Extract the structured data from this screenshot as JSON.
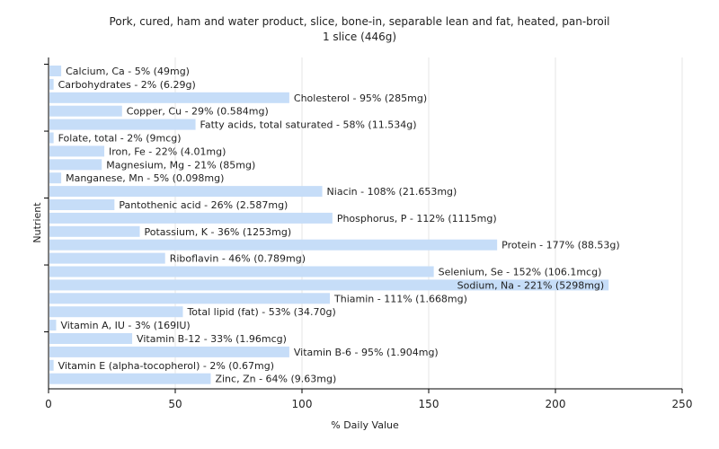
{
  "chart_data": {
    "type": "bar",
    "orientation": "horizontal",
    "title": "Pork, cured, ham and water product, slice, bone-in, separable lean and fat, heated, pan-broil",
    "subtitle": "1 slice (446g)",
    "xlabel": "% Daily Value",
    "ylabel": "Nutrient",
    "xlim": [
      0,
      250
    ],
    "xticks": [
      "0",
      "50",
      "100",
      "150",
      "200",
      "250"
    ],
    "grid": true,
    "categories": [
      "Calcium, Ca",
      "Carbohydrates",
      "Cholesterol",
      "Copper, Cu",
      "Fatty acids, total saturated",
      "Folate, total",
      "Iron, Fe",
      "Magnesium, Mg",
      "Manganese, Mn",
      "Niacin",
      "Pantothenic acid",
      "Phosphorus, P",
      "Potassium, K",
      "Protein",
      "Riboflavin",
      "Selenium, Se",
      "Sodium, Na",
      "Thiamin",
      "Total lipid (fat)",
      "Vitamin A, IU",
      "Vitamin B-12",
      "Vitamin B-6",
      "Vitamin E (alpha-tocopherol)",
      "Zinc, Zn"
    ],
    "values": [
      5,
      2,
      95,
      29,
      58,
      2,
      22,
      21,
      5,
      108,
      26,
      112,
      36,
      177,
      46,
      152,
      221,
      111,
      53,
      3,
      33,
      95,
      2,
      64
    ],
    "labels": [
      "Calcium, Ca - 5% (49mg)",
      "Carbohydrates - 2% (6.29g)",
      "Cholesterol - 95% (285mg)",
      "Copper, Cu - 29% (0.584mg)",
      "Fatty acids, total saturated - 58% (11.534g)",
      "Folate, total - 2% (9mcg)",
      "Iron, Fe - 22% (4.01mg)",
      "Magnesium, Mg - 21% (85mg)",
      "Manganese, Mn - 5% (0.098mg)",
      "Niacin - 108% (21.653mg)",
      "Pantothenic acid - 26% (2.587mg)",
      "Phosphorus, P - 112% (1115mg)",
      "Potassium, K - 36% (1253mg)",
      "Protein - 177% (88.53g)",
      "Riboflavin - 46% (0.789mg)",
      "Selenium, Se - 152% (106.1mcg)",
      "Sodium, Na - 221% (5298mg)",
      "Thiamin - 111% (1.668mg)",
      "Total lipid (fat) - 53% (34.70g)",
      "Vitamin A, IU - 3% (169IU)",
      "Vitamin B-12 - 33% (1.96mcg)",
      "Vitamin B-6 - 95% (1.904mg)",
      "Vitamin E (alpha-tocopherol) - 2% (0.67mg)",
      "Zinc, Zn - 64% (9.63mg)"
    ],
    "bar_color": "#c6ddf8"
  }
}
